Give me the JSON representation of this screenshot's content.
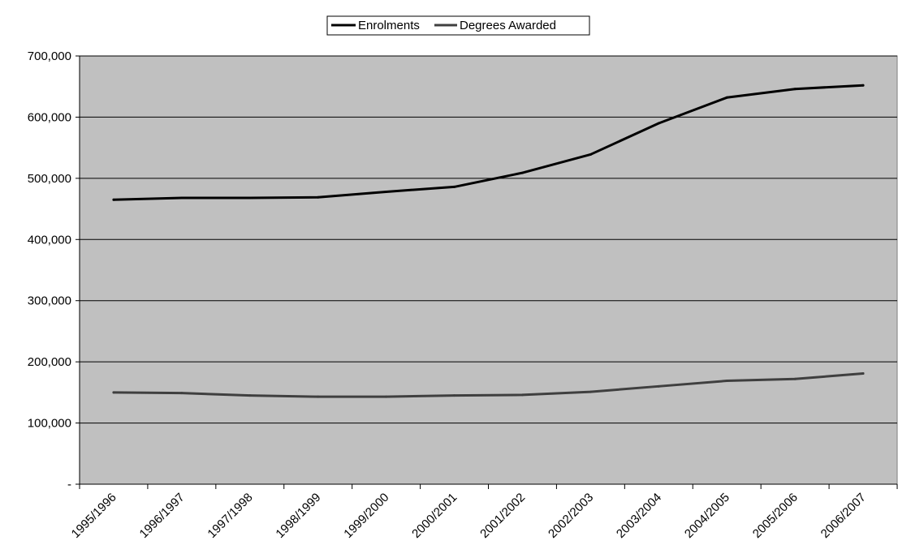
{
  "chart_data": {
    "type": "line",
    "categories": [
      "1995/1996",
      "1996/1997",
      "1997/1998",
      "1998/1999",
      "1999/2000",
      "2000/2001",
      "2001/2002",
      "2002/2003",
      "2003/2004",
      "2004/2005",
      "2005/2006",
      "2006/2007"
    ],
    "series": [
      {
        "name": "Enrolments",
        "color": "#000000",
        "values": [
          465000,
          468000,
          468000,
          469000,
          478000,
          486000,
          509000,
          539000,
          590000,
          632000,
          646000,
          652000
        ]
      },
      {
        "name": "Degrees Awarded",
        "color": "#3f3f3f",
        "values": [
          150000,
          149000,
          145000,
          143000,
          143000,
          145000,
          146000,
          151000,
          160000,
          169000,
          172000,
          181000
        ]
      }
    ],
    "title": "",
    "xlabel": "",
    "ylabel": "",
    "ylim": [
      0,
      700000
    ],
    "yticks": [
      0,
      100000,
      200000,
      300000,
      400000,
      500000,
      600000,
      700000
    ],
    "ytick_labels": [
      "-",
      "100,000",
      "200,000",
      "300,000",
      "400,000",
      "500,000",
      "600,000",
      "700,000"
    ],
    "grid": true,
    "plot_background": "#c0c0c0",
    "legend_position": "top-center"
  }
}
